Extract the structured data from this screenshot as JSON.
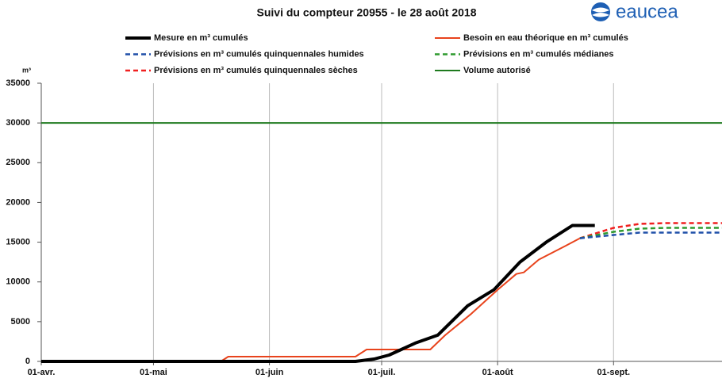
{
  "chart_data": {
    "type": "line",
    "title": "Suivi du compteur 20955 - le 28 août 2018",
    "logo": "eaucea",
    "ylabel": "m³",
    "xlim": [
      "04-01",
      "09-30"
    ],
    "xticks": [
      {
        "value": "04-01",
        "label": "01-avr."
      },
      {
        "value": "05-01",
        "label": "01-mai"
      },
      {
        "value": "06-01",
        "label": "01-juin"
      },
      {
        "value": "07-01",
        "label": "01-juil."
      },
      {
        "value": "08-01",
        "label": "01-août"
      },
      {
        "value": "09-01",
        "label": "01-sept."
      }
    ],
    "ylim": [
      0,
      35000
    ],
    "yticks": [
      0,
      5000,
      10000,
      15000,
      20000,
      25000,
      30000,
      35000
    ],
    "grid": "x",
    "legend": "top",
    "series": [
      {
        "name": "Mesure en m³ cumulés",
        "color": "#000000",
        "width": 4,
        "dash": "none",
        "x": [
          "04-01",
          "06-24",
          "06-29",
          "07-03",
          "07-10",
          "07-16",
          "07-24",
          "07-31",
          "08-07",
          "08-14",
          "08-21",
          "08-27"
        ],
        "values": [
          0,
          0,
          300,
          800,
          2300,
          3300,
          7000,
          9000,
          12500,
          15000,
          17100,
          17100
        ]
      },
      {
        "name": "Besoin en eau théorique en m³ cumulés",
        "color": "#e8431c",
        "width": 2,
        "dash": "none",
        "x": [
          "04-01",
          "05-19",
          "05-21",
          "06-24",
          "06-27",
          "07-14",
          "07-18",
          "07-25",
          "08-01",
          "08-06",
          "08-08",
          "08-12",
          "08-19",
          "08-23"
        ],
        "values": [
          0,
          0,
          600,
          600,
          1500,
          1500,
          3300,
          6000,
          9000,
          11000,
          11200,
          12800,
          14500,
          15500
        ]
      },
      {
        "name": "Prévisions en m³ cumulés quinquennales humides",
        "color": "#1f4fa8",
        "width": 2.5,
        "dash": "6 4",
        "x": [
          "08-23",
          "09-01",
          "09-08",
          "09-30"
        ],
        "values": [
          15500,
          15900,
          16200,
          16200
        ]
      },
      {
        "name": "Prévisions en m³ cumulés médianes",
        "color": "#2e9a2e",
        "width": 2.5,
        "dash": "6 4",
        "x": [
          "08-23",
          "09-01",
          "09-08",
          "09-15",
          "09-30"
        ],
        "values": [
          15500,
          16300,
          16700,
          16800,
          16800
        ]
      },
      {
        "name": "Prévisions en m³ cumulés quinquennales sèches",
        "color": "#f02020",
        "width": 2.5,
        "dash": "6 4",
        "x": [
          "08-23",
          "09-01",
          "09-08",
          "09-15",
          "09-30"
        ],
        "values": [
          15500,
          16800,
          17300,
          17400,
          17400
        ]
      },
      {
        "name": "Volume autorisé",
        "color": "#1e7a1e",
        "width": 2,
        "dash": "none",
        "x": [
          "04-01",
          "09-30"
        ],
        "values": [
          30000,
          30000
        ]
      }
    ]
  }
}
